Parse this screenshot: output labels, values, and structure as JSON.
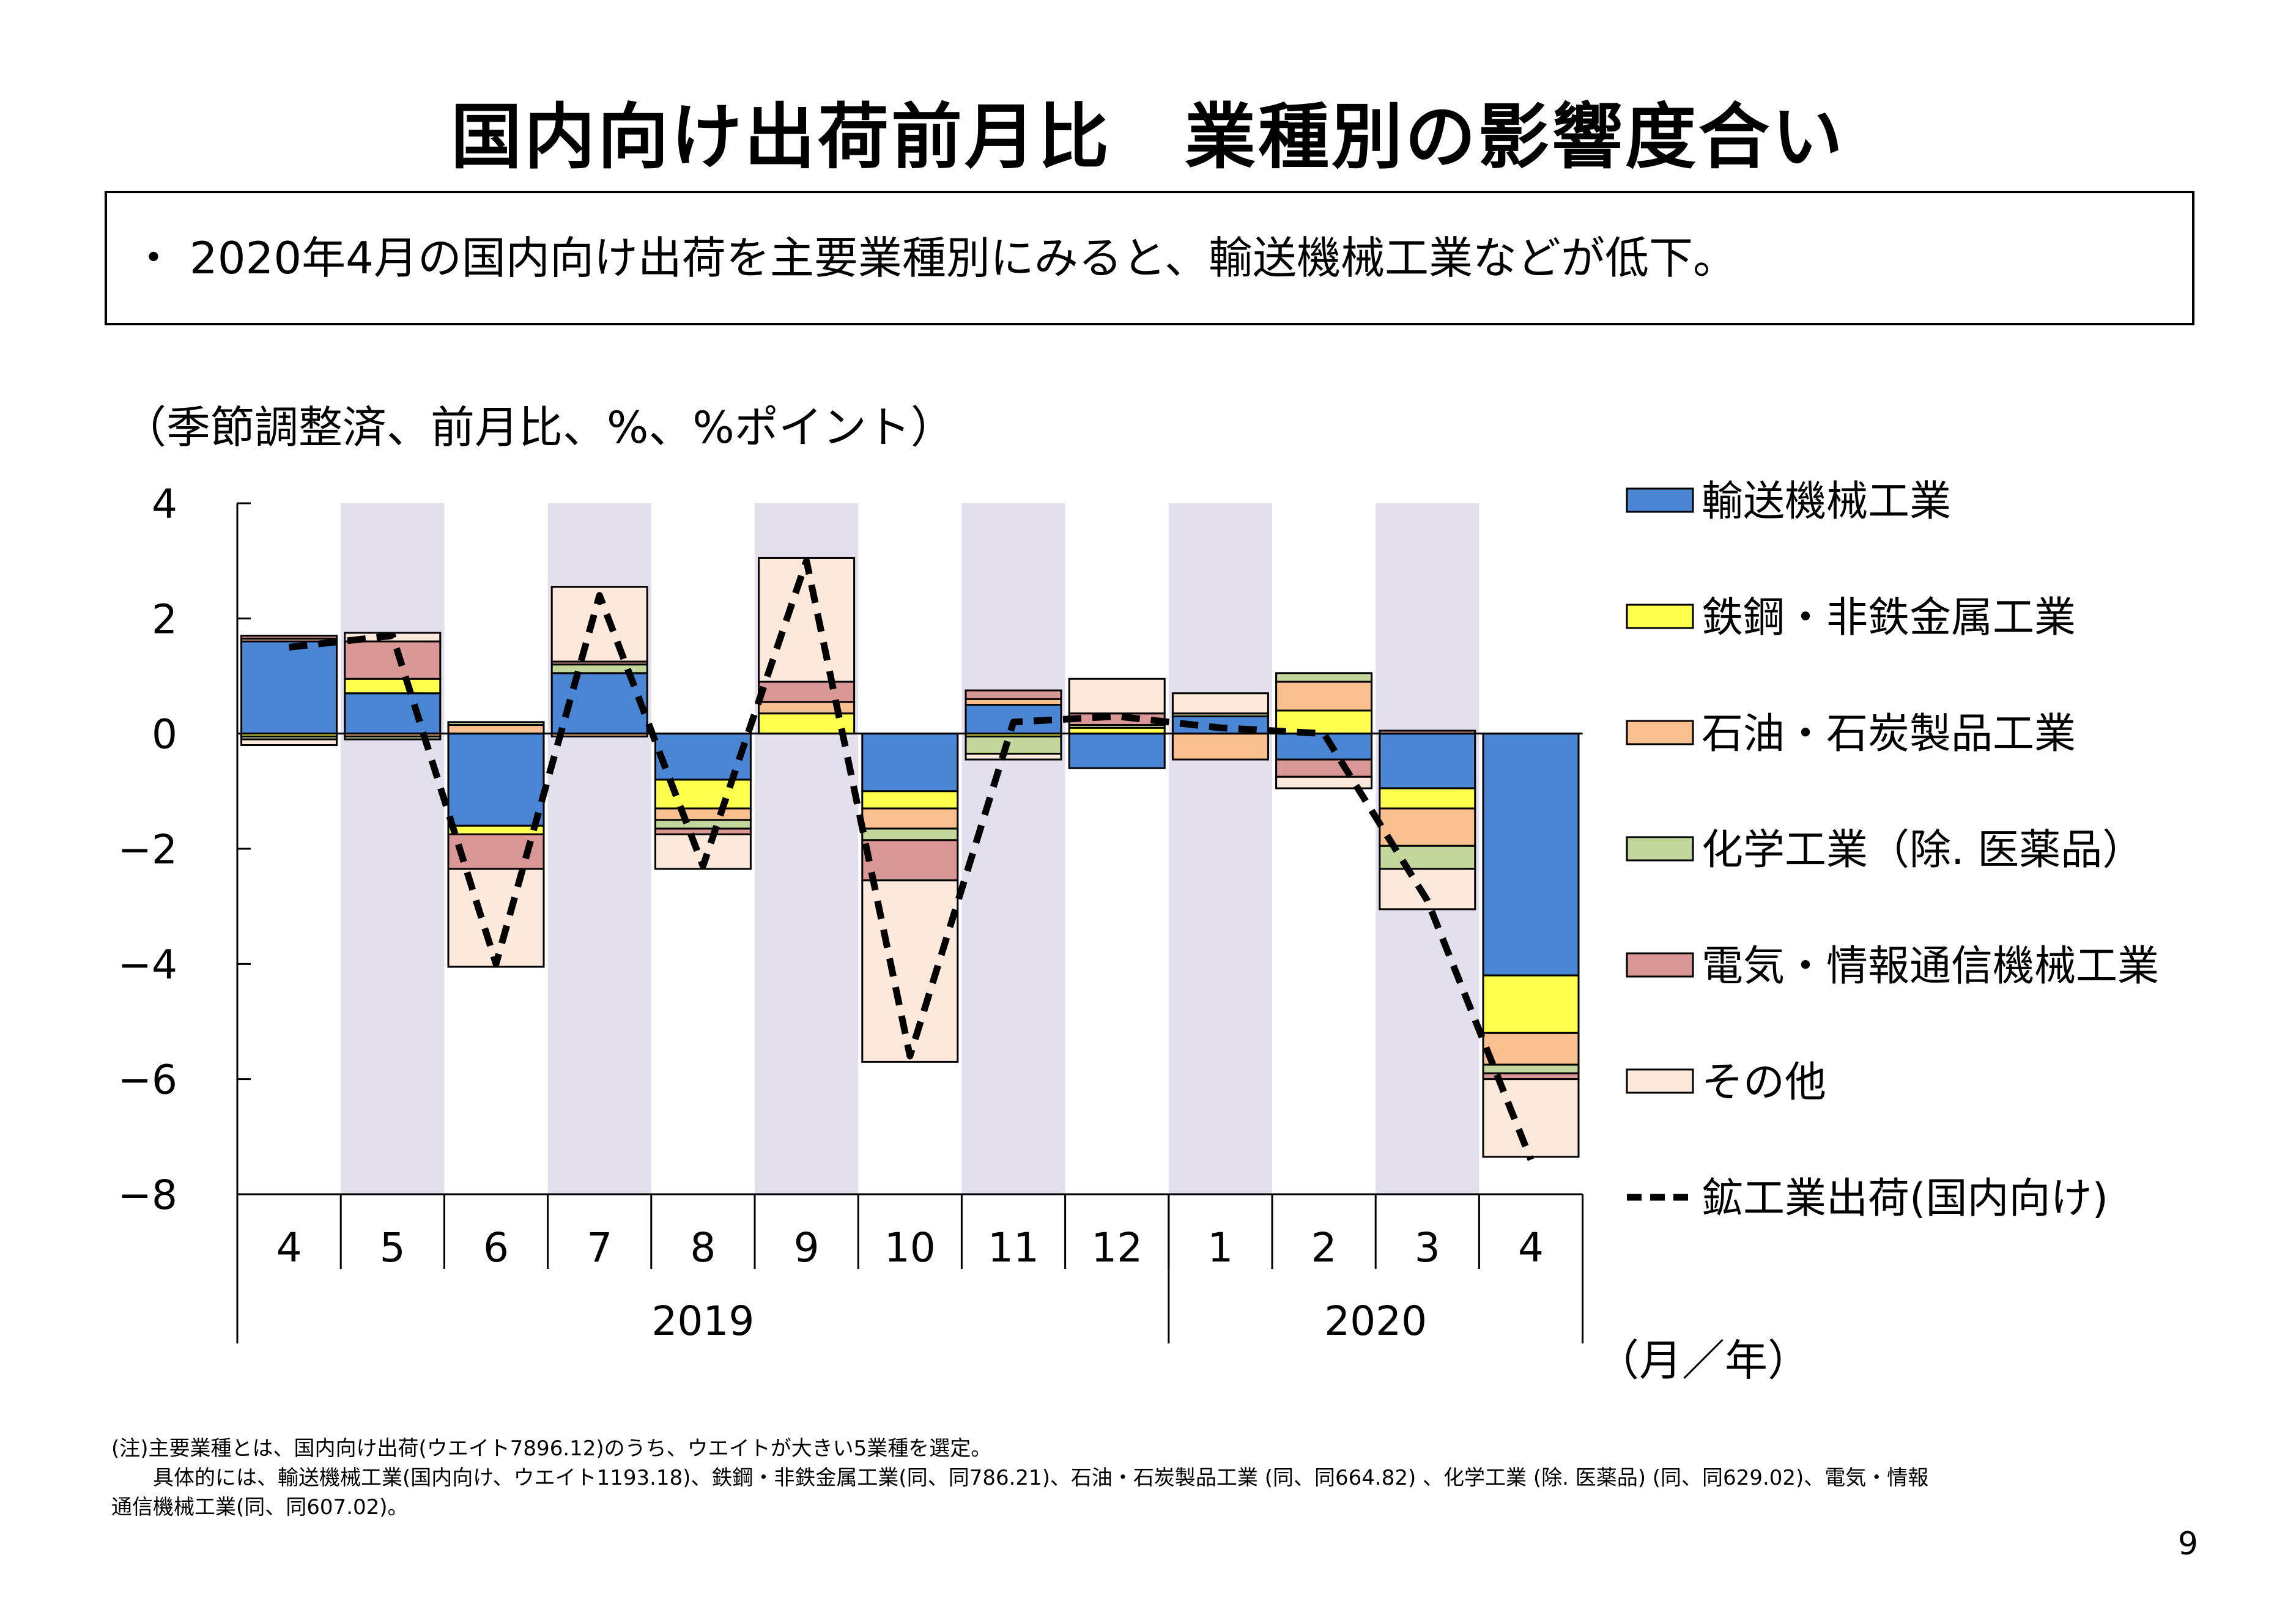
{
  "title": "国内向け出荷前月比　業種別の影響度合い",
  "summary": "・ 2020年4月の国内向け出荷を主要業種別にみると、輸送機械工業などが低下。",
  "unit_label": "（季節調整済、前月比、%、%ポイント）",
  "x_axis_label": "（月／年）",
  "footnote": {
    "line1": "(注)主要業種とは、国内向け出荷(ウエイト7896.12)のうち、ウエイトが大きい5業種を選定。",
    "line2": "　　具体的には、輸送機械工業(国内向け、ウエイト1193.18)、鉄鋼・非鉄金属工業(同、同786.21)、石油・石炭製品工業 (同、同664.82) 、化学工業 (除. 医薬品) (同、同629.02)、電気・情報",
    "line3": "通信機械工業(同、同607.02)。"
  },
  "page_number": "9",
  "chart_data": {
    "type": "bar",
    "stacked": true,
    "categories": [
      "4",
      "5",
      "6",
      "7",
      "8",
      "9",
      "10",
      "11",
      "12",
      "1",
      "2",
      "3",
      "4"
    ],
    "year_groups": [
      {
        "label": "2019",
        "months": 9
      },
      {
        "label": "2020",
        "months": 4
      }
    ],
    "shaded_categories": [
      1,
      3,
      5,
      7,
      9,
      11
    ],
    "shade_color": "#e4dfec",
    "ylim": [
      -8,
      4
    ],
    "yticks": [
      4,
      2,
      0,
      -2,
      -4,
      -6,
      -8
    ],
    "ytick_labels": [
      "4",
      "2",
      "0",
      "−2",
      "−4",
      "−6",
      "−8"
    ],
    "series": [
      {
        "name": "輸送機械工業",
        "color": "#4a86d4",
        "values": [
          1.6,
          0.7,
          -1.6,
          1.05,
          -0.8,
          0.0,
          -1.0,
          0.5,
          -0.6,
          0.3,
          -0.45,
          -0.95,
          -4.2
        ]
      },
      {
        "name": "鉄鋼・非鉄金属工業",
        "color": "#ffff4d",
        "values": [
          -0.05,
          0.25,
          -0.15,
          0.0,
          -0.5,
          0.35,
          -0.3,
          -0.05,
          0.1,
          0.0,
          0.4,
          -0.35,
          -1.0
        ]
      },
      {
        "name": "石油・石炭製品工業",
        "color": "#f9bf8f",
        "values": [
          0.05,
          -0.05,
          0.15,
          -0.05,
          -0.2,
          0.2,
          -0.35,
          0.1,
          0.0,
          -0.45,
          0.5,
          -0.65,
          -0.55
        ]
      },
      {
        "name": "化学工業（除. 医薬品）",
        "color": "#c3d69b",
        "values": [
          -0.05,
          -0.05,
          0.05,
          0.15,
          -0.15,
          0.0,
          -0.2,
          -0.3,
          0.05,
          0.05,
          0.15,
          -0.4,
          -0.15
        ]
      },
      {
        "name": "電気・情報通信機械工業",
        "color": "#d99795",
        "values": [
          0.05,
          0.65,
          -0.6,
          0.05,
          -0.1,
          0.35,
          -0.7,
          0.15,
          0.2,
          0.0,
          -0.3,
          0.05,
          -0.1
        ]
      },
      {
        "name": "その他",
        "color": "#fce9db",
        "values": [
          -0.1,
          0.15,
          -1.7,
          1.3,
          -0.6,
          2.15,
          -3.15,
          -0.1,
          0.6,
          0.35,
          -0.2,
          -0.7,
          -1.35
        ]
      }
    ],
    "line": {
      "name": "鉱工業出荷(国内向け)",
      "style": "dashed",
      "color": "#000000",
      "values": [
        1.5,
        1.7,
        -4.0,
        2.4,
        -2.3,
        3.0,
        -5.6,
        0.2,
        0.3,
        0.1,
        0.0,
        -2.9,
        -7.4
      ]
    }
  }
}
